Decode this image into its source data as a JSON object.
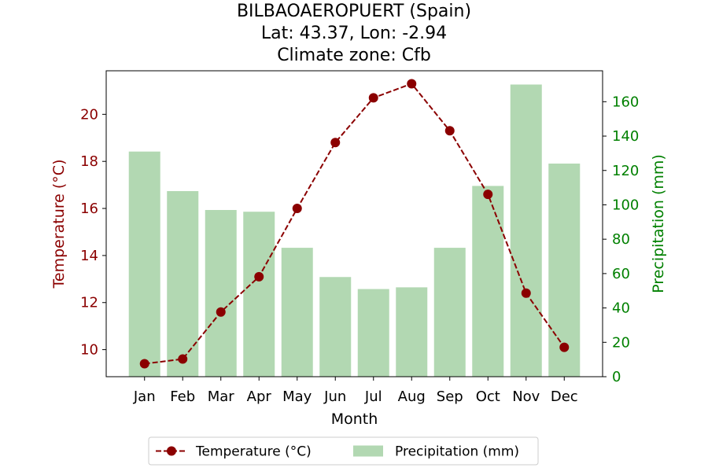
{
  "chart_data": {
    "type": "bar+line",
    "title_lines": [
      "BILBAOAEROPUERT (Spain)",
      "Lat: 43.37, Lon: -2.94",
      "Climate zone: Cfb"
    ],
    "xlabel": "Month",
    "categories": [
      "Jan",
      "Feb",
      "Mar",
      "Apr",
      "May",
      "Jun",
      "Jul",
      "Aug",
      "Sep",
      "Oct",
      "Nov",
      "Dec"
    ],
    "y_left": {
      "label": "Temperature (°C)",
      "ylim": [
        8.85,
        21.85
      ],
      "ticks": [
        10,
        12,
        14,
        16,
        18,
        20
      ],
      "color": "#8b0000"
    },
    "y_right": {
      "label": "Precipitation (mm)",
      "ylim": [
        0,
        178
      ],
      "ticks": [
        0,
        20,
        40,
        60,
        80,
        100,
        120,
        140,
        160
      ],
      "color": "#008000"
    },
    "series": [
      {
        "name": "Temperature (°C)",
        "type": "line",
        "axis": "left",
        "style": "dashed-with-circle-markers",
        "color": "#8b0000",
        "values": [
          9.4,
          9.6,
          11.6,
          13.1,
          16.0,
          18.8,
          20.7,
          21.3,
          19.3,
          16.6,
          12.4,
          10.1
        ]
      },
      {
        "name": "Precipitation (mm)",
        "type": "bar",
        "axis": "right",
        "color": "#b2d8b2",
        "values": [
          131,
          108,
          97,
          96,
          75,
          58,
          51,
          52,
          75,
          111,
          170,
          124
        ]
      }
    ],
    "legend": {
      "placement": "bottom-center",
      "entries": [
        "Temperature (°C)",
        "Precipitation (mm)"
      ]
    },
    "grid": false
  }
}
